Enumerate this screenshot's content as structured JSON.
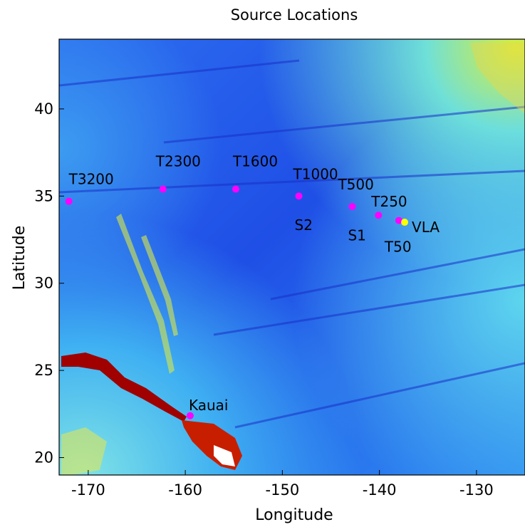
{
  "chart_data": {
    "type": "scatter",
    "title": "Source Locations",
    "xlabel": "Longitude",
    "ylabel": "Latitude",
    "xlim": [
      -173,
      -125
    ],
    "ylim": [
      19,
      44
    ],
    "xticks": [
      -170,
      -160,
      -150,
      -140,
      -130
    ],
    "yticks": [
      20,
      25,
      30,
      35,
      40
    ],
    "xtick_labels": [
      "-170",
      "-160",
      "-150",
      "-140",
      "-130"
    ],
    "ytick_labels": [
      "20",
      "25",
      "30",
      "35",
      "40"
    ],
    "background": "bathymetry colormap (blue = deep ocean, yellow/red/white = shallow/land)",
    "points": [
      {
        "label": "T3200",
        "lon": -172.0,
        "lat": 34.7,
        "color": "#ff00ff"
      },
      {
        "label": "T2300",
        "lon": -162.3,
        "lat": 35.4,
        "color": "#ff00ff"
      },
      {
        "label": "T1600",
        "lon": -154.8,
        "lat": 35.4,
        "color": "#ff00ff"
      },
      {
        "label": "T1000",
        "lon": -148.3,
        "lat": 35.0,
        "color": "#ff00ff"
      },
      {
        "label": "T500",
        "lon": -142.8,
        "lat": 34.4,
        "color": "#ff00ff"
      },
      {
        "label": "T250",
        "lon": -140.1,
        "lat": 33.9,
        "color": "#ff00ff"
      },
      {
        "label": "T50",
        "lon": -138.0,
        "lat": 33.6,
        "color": "#ff00ff"
      },
      {
        "label": "VLA",
        "lon": -137.4,
        "lat": 33.5,
        "color": "#ffff00"
      },
      {
        "label": "Kauai",
        "lon": -159.5,
        "lat": 22.4,
        "color": "#ff00ff"
      }
    ],
    "annotations": [
      {
        "text": "S2",
        "lon": -148.3,
        "lat": 34.2
      },
      {
        "text": "S1",
        "lon": -142.8,
        "lat": 33.6
      }
    ]
  }
}
